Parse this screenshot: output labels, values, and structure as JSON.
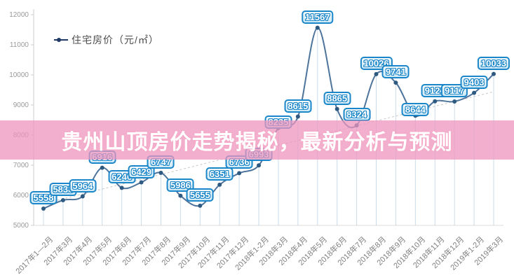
{
  "banner": {
    "title": "贵州山顶房价走势揭秘，最新分析与预测",
    "band_color": "#ee96be",
    "band_opacity": 0.75
  },
  "chart_data": {
    "type": "line",
    "title": "",
    "legend": "住宅房价（元/㎡）",
    "legend_position": "top-left",
    "categories": [
      "2017年1—2月",
      "2017年3月",
      "2017年4月",
      "2017年5月",
      "2017年6月",
      "2017年7月",
      "2017年8月",
      "2017年9月",
      "2017年10月",
      "2017年11月",
      "2017年12月",
      "2018年1-2月",
      "2018年3月",
      "2018年4月",
      "2018年5月",
      "2018年6月",
      "2018年7月",
      "2018年8月",
      "2018年9月",
      "2018年10月",
      "2018年11月",
      "2018年12月",
      "2019年1-2月",
      "2019年3月"
    ],
    "values": [
      5558,
      5838,
      5964,
      6916,
      6246,
      6429,
      6747,
      5986,
      5655,
      6351,
      6736,
      6993,
      8235,
      8615,
      11567,
      8865,
      8324,
      10026,
      9741,
      8644,
      9121,
      9117,
      9403,
      10033
    ],
    "ylim": [
      5000,
      12000
    ],
    "ytick_step": 1000,
    "yticks": [
      5000,
      6000,
      7000,
      8000,
      9000,
      10000,
      11000,
      12000
    ],
    "grid": false,
    "trend_line": true,
    "colors": {
      "line": "#4e749c",
      "marker": "#2e5a82",
      "drop_line": "#9fc0d8",
      "label_border": "#1b86c8",
      "label_text": "#ffffff",
      "axis": "#cccccc",
      "tick_text": "#999999",
      "x_tick_text": "#808080",
      "trend": "#c8c8c8",
      "legend_marker": "#1f3864"
    }
  }
}
